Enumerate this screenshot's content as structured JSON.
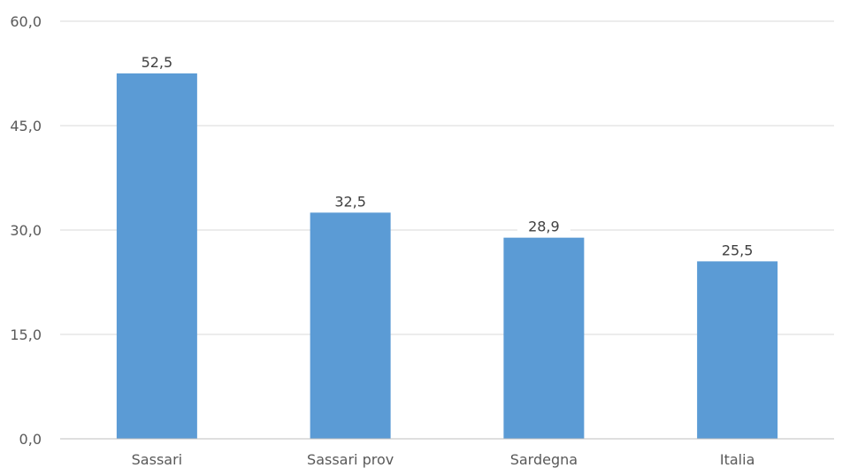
{
  "chart_data": {
    "type": "bar",
    "categories": [
      "Sassari",
      "Sassari prov",
      "Sardegna",
      "Italia"
    ],
    "values": [
      52.5,
      32.5,
      28.9,
      25.5
    ],
    "value_labels": [
      "52,5",
      "32,5",
      "28,9",
      "25,5"
    ],
    "yticks": [
      0,
      15,
      30,
      45,
      60
    ],
    "ytick_labels": [
      "0,0",
      "15,0",
      "30,0",
      "45,0",
      "60,0"
    ],
    "ylim": [
      0,
      60
    ],
    "grid": true,
    "bar_color": "#5b9bd5"
  }
}
